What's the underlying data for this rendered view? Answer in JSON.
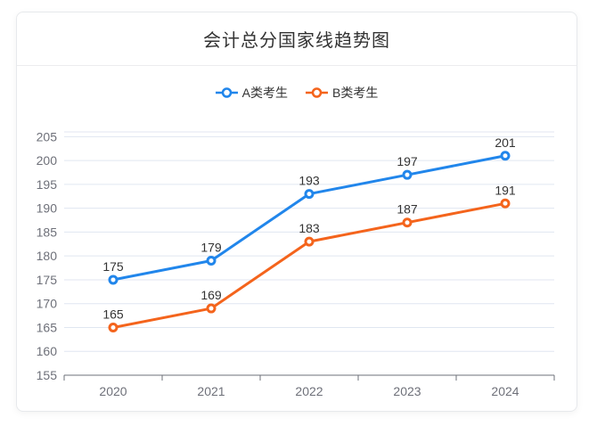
{
  "card": {
    "title": "会计总分国家线趋势图"
  },
  "colors": {
    "series_a": "#2186EB",
    "series_b": "#F4641C",
    "grid_line": "#E0E6F1",
    "axis_line": "#6E7079",
    "axis_label": "#6E7079",
    "data_label": "#333333",
    "legend_text": "#333333",
    "title_text": "#333333",
    "card_border": "#E7E9EC",
    "marker_fill": "#FFFFFF"
  },
  "chart_data": {
    "type": "line",
    "title": "会计总分国家线趋势图",
    "categories": [
      "2020",
      "2021",
      "2022",
      "2023",
      "2024"
    ],
    "series": [
      {
        "name": "A类考生",
        "color": "#2186EB",
        "values": [
          175,
          179,
          193,
          197,
          201
        ]
      },
      {
        "name": "B类考生",
        "color": "#F4641C",
        "values": [
          165,
          169,
          183,
          187,
          191
        ]
      }
    ],
    "y_ticks": [
      155,
      160,
      165,
      170,
      175,
      180,
      185,
      190,
      195,
      200,
      205
    ],
    "ylim": [
      155,
      206
    ],
    "xlabel": "",
    "ylabel": "",
    "grid": true,
    "legend_position": "top",
    "marker": "hollow-circle",
    "data_labels": true
  }
}
